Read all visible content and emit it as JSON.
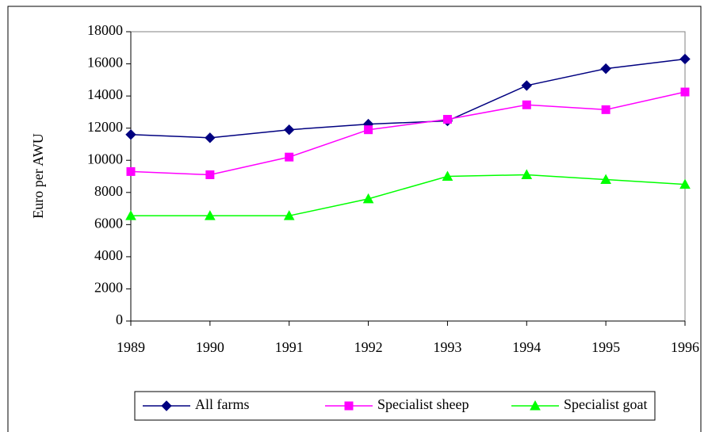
{
  "chart_data": {
    "type": "line",
    "y_label": "Euro per AWU",
    "categories": [
      "1989",
      "1990",
      "1991",
      "1992",
      "1993",
      "1994",
      "1995",
      "1996"
    ],
    "series": [
      {
        "name": "All farms",
        "color": "#000080",
        "marker": "diamond",
        "values": [
          11600,
          11400,
          11900,
          12250,
          12450,
          14650,
          15700,
          16300
        ]
      },
      {
        "name": "Specialist sheep",
        "color": "#ff00ff",
        "marker": "square",
        "values": [
          9300,
          9100,
          10200,
          11900,
          12550,
          13450,
          13150,
          14250
        ]
      },
      {
        "name": "Specialist goat",
        "color": "#00ff00",
        "marker": "triangle",
        "values": [
          6550,
          6550,
          6550,
          7600,
          9000,
          9100,
          8800,
          8500
        ]
      }
    ],
    "ylim": [
      0,
      18000
    ],
    "yticks": [
      0,
      2000,
      4000,
      6000,
      8000,
      10000,
      12000,
      14000,
      16000,
      18000
    ],
    "legend": "bottom"
  }
}
